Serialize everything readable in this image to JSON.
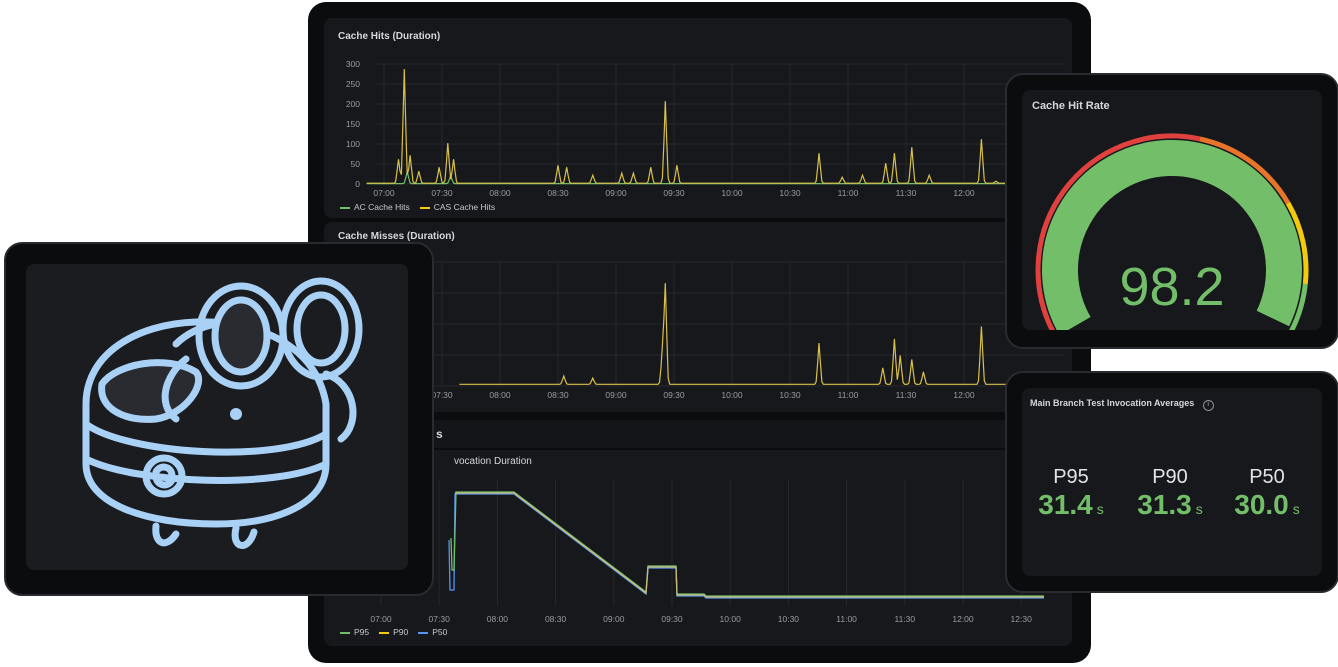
{
  "dashboard": {
    "panels": {
      "cache_hits": {
        "title": "Cache Hits (Duration)",
        "legend": [
          {
            "name": "AC Cache Hits",
            "color": "#73bf69"
          },
          {
            "name": "CAS Cache Hits",
            "color": "#f2cc0c"
          }
        ]
      },
      "cache_misses": {
        "title": "Cache Misses (Duration)"
      },
      "section_fragment": "s",
      "invocation": {
        "title_fragment": "vocation Duration",
        "legend": [
          {
            "name": "P95",
            "color": "#73bf69"
          },
          {
            "name": "P90",
            "color": "#f2cc0c"
          },
          {
            "name": "P50",
            "color": "#5794f2"
          }
        ]
      }
    },
    "hit_rate": {
      "title": "Cache Hit Rate",
      "value": "98.2",
      "percent": 98.2
    },
    "averages": {
      "title": "Main Branch Test Invocation Averages",
      "stats": [
        {
          "label": "P95",
          "value": "31.4",
          "unit": "s"
        },
        {
          "label": "P90",
          "value": "31.3",
          "unit": "s"
        },
        {
          "label": "P50",
          "value": "30.0",
          "unit": "s"
        }
      ]
    },
    "mascot": {
      "name": "buildbuddy-mascot-icon"
    }
  },
  "chart_data": [
    {
      "type": "line",
      "title": "Cache Hits (Duration)",
      "x": [
        "07:00",
        "07:30",
        "08:00",
        "08:30",
        "09:00",
        "09:30",
        "10:00",
        "10:30",
        "11:00",
        "11:30",
        "12:00"
      ],
      "yticks": [
        0,
        50,
        100,
        150,
        200,
        250,
        300
      ],
      "ylim": [
        0,
        300
      ],
      "series": [
        {
          "name": "AC Cache Hits",
          "color": "#73bf69"
        },
        {
          "name": "CAS Cache Hits",
          "color": "#f2cc0c"
        }
      ],
      "peaks": [
        [
          0.35,
          285
        ],
        [
          1.1,
          100
        ],
        [
          4.85,
          205
        ],
        [
          7.5,
          75
        ],
        [
          8.8,
          75
        ],
        [
          9.1,
          90
        ],
        [
          10.3,
          110
        ]
      ]
    },
    {
      "type": "line",
      "title": "Cache Misses (Duration)",
      "x": [
        "07:30",
        "08:00",
        "08:30",
        "09:00",
        "09:30",
        "10:00",
        "10:30",
        "11:00",
        "11:30",
        "12:00"
      ],
      "peaks": [
        [
          4.85,
          240
        ],
        [
          7.5,
          100
        ],
        [
          8.8,
          110
        ],
        [
          9.1,
          60
        ],
        [
          10.3,
          140
        ]
      ]
    },
    {
      "type": "line",
      "title": "Invocation Duration",
      "x": [
        "07:00",
        "07:30",
        "08:00",
        "08:30",
        "09:00",
        "09:30",
        "10:00",
        "10:30",
        "11:00",
        "11:30",
        "12:00",
        "12:30"
      ],
      "series": [
        {
          "name": "P95",
          "color": "#73bf69"
        },
        {
          "name": "P90",
          "color": "#f2cc0c"
        },
        {
          "name": "P50",
          "color": "#5794f2"
        }
      ]
    }
  ]
}
